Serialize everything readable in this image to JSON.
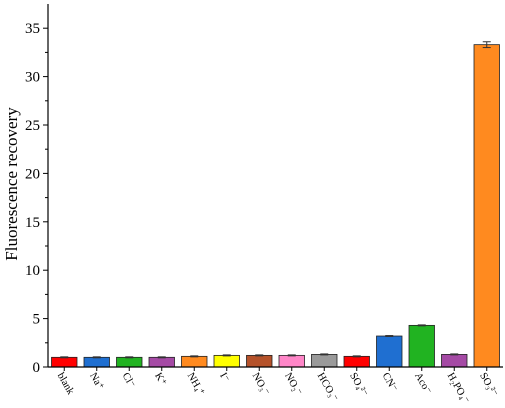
{
  "chart_data": {
    "type": "bar",
    "ylabel": "Fluorescence recovery",
    "ylim": [
      0,
      37.5
    ],
    "yticks": [
      0,
      5,
      10,
      15,
      20,
      25,
      30,
      35
    ],
    "categories": [
      "blank",
      "Na⁺",
      "Cl⁻",
      "K⁺",
      "NH₄⁺",
      "I⁻",
      "NO₃⁻",
      "NO₂⁻",
      "HCO₃⁻",
      "SO₄²⁻",
      "CN⁻",
      "Aco⁻",
      "H₂PO₄⁻",
      "SO₃²⁻"
    ],
    "values": [
      1.0,
      1.0,
      1.0,
      1.0,
      1.1,
      1.2,
      1.2,
      1.2,
      1.3,
      1.1,
      3.2,
      4.3,
      1.3,
      33.3
    ],
    "errors": [
      0.05,
      0.05,
      0.05,
      0.05,
      0.05,
      0.05,
      0.05,
      0.05,
      0.05,
      0.05,
      0.05,
      0.05,
      0.05,
      0.3
    ],
    "colors": [
      "#ff0000",
      "#1f6fd1",
      "#21b321",
      "#a54aa5",
      "#ff8a1f",
      "#ffff00",
      "#b5522a",
      "#ff86c8",
      "#9a9a9a",
      "#ff0000",
      "#1f6fd1",
      "#21b321",
      "#a54aa5",
      "#ff8a1f"
    ],
    "grid": false,
    "legend": "none"
  }
}
